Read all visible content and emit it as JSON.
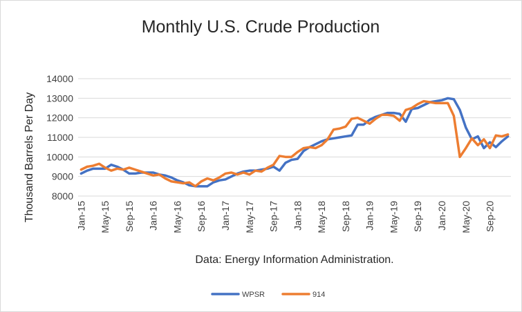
{
  "chart_data": {
    "type": "line",
    "title": "Monthly U.S. Crude Production",
    "xlabel": "Data: Energy Information Administration.",
    "ylabel": "Thousand Barrels Per Day",
    "ylim": [
      8000,
      14000
    ],
    "yticks": [
      "8000",
      "9000",
      "10000",
      "11000",
      "12000",
      "13000",
      "14000"
    ],
    "xticks": [
      "Jan-15",
      "May-15",
      "Sep-15",
      "Jan-16",
      "May-16",
      "Sep-16",
      "Jan-17",
      "May-17",
      "Sep-17",
      "Jan-18",
      "May-18",
      "Sep-18",
      "Jan-19",
      "May-19",
      "Sep-19",
      "Jan-20",
      "May-20",
      "Sep-20"
    ],
    "grid": true,
    "legend_position": "bottom",
    "series": [
      {
        "name": "WPSR",
        "color": "#4472C4",
        "values": [
          9150,
          9300,
          9400,
          9400,
          9400,
          9600,
          9500,
          9350,
          9150,
          9150,
          9200,
          9200,
          9200,
          9100,
          9050,
          8950,
          8800,
          8700,
          8550,
          8500,
          8500,
          8500,
          8700,
          8800,
          8850,
          9000,
          9150,
          9250,
          9300,
          9300,
          9350,
          9400,
          9500,
          9300,
          9700,
          9850,
          9900,
          10300,
          10500,
          10650,
          10800,
          10900,
          10950,
          11000,
          11050,
          11100,
          11650,
          11650,
          11900,
          12050,
          12150,
          12250,
          12250,
          12200,
          11800,
          12450,
          12500,
          12650,
          12800,
          12850,
          12900,
          13000,
          12950,
          12400,
          11500,
          10900,
          11050,
          10450,
          10750,
          10500,
          10800,
          11050
        ]
      },
      {
        "name": "914",
        "color": "#ED7D31",
        "values": [
          9350,
          9500,
          9550,
          9650,
          9450,
          9300,
          9400,
          9350,
          9450,
          9350,
          9250,
          9150,
          9050,
          9100,
          8900,
          8750,
          8700,
          8650,
          8700,
          8500,
          8750,
          8900,
          8800,
          8950,
          9150,
          9200,
          9100,
          9200,
          9100,
          9300,
          9250,
          9450,
          9600,
          10050,
          10000,
          10000,
          10250,
          10450,
          10500,
          10450,
          10600,
          10900,
          11400,
          11450,
          11550,
          11950,
          12000,
          11850,
          11700,
          11950,
          12150,
          12150,
          12100,
          11850,
          12400,
          12500,
          12700,
          12850,
          12800,
          12750,
          12750,
          12750,
          12100,
          10000,
          10450,
          10950,
          10600,
          10900,
          10450,
          11100,
          11050,
          11150
        ]
      }
    ]
  }
}
